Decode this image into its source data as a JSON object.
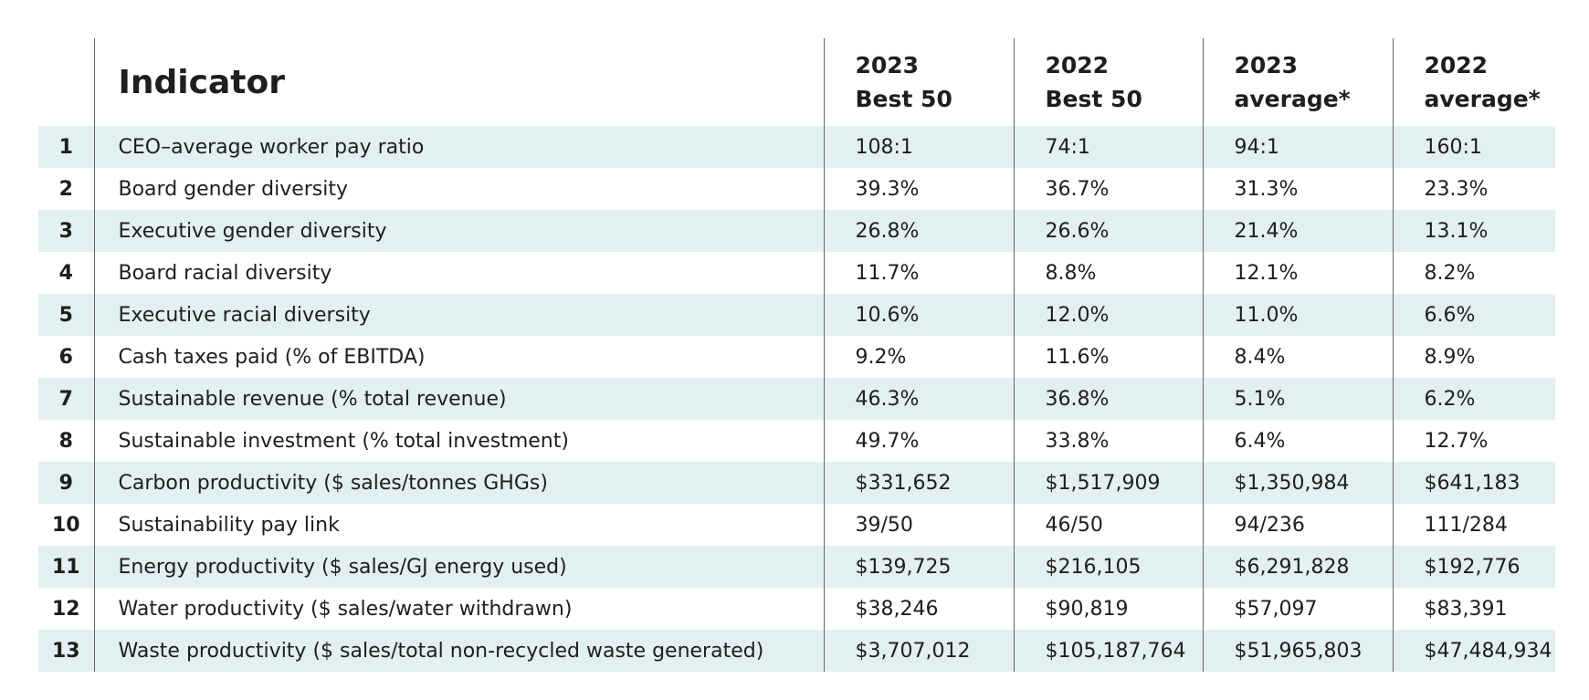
{
  "header": {
    "title": "Indicator",
    "columns": [
      [
        "2023",
        "Best 50"
      ],
      [
        "2022",
        "Best 50"
      ],
      [
        "2023",
        "average*"
      ],
      [
        "2022",
        "average*"
      ]
    ]
  },
  "table": {
    "rows": [
      [
        "1",
        "CEO–average worker pay ratio",
        "108:1",
        "74:1",
        "94:1",
        "160:1"
      ],
      [
        "2",
        "Board gender diversity",
        "39.3%",
        "36.7%",
        "31.3%",
        "23.3%"
      ],
      [
        "3",
        "Executive gender diversity",
        "26.8%",
        "26.6%",
        "21.4%",
        "13.1%"
      ],
      [
        "4",
        "Board racial diversity",
        "11.7%",
        "8.8%",
        "12.1%",
        "8.2%"
      ],
      [
        "5",
        "Executive racial diversity",
        "10.6%",
        "12.0%",
        "11.0%",
        "6.6%"
      ],
      [
        "6",
        "Cash taxes paid (% of EBITDA)",
        "9.2%",
        "11.6%",
        "8.4%",
        "8.9%"
      ],
      [
        "7",
        "Sustainable revenue (% total revenue)",
        "46.3%",
        "36.8%",
        "5.1%",
        "6.2%"
      ],
      [
        "8",
        "Sustainable investment (% total investment)",
        "49.7%",
        "33.8%",
        "6.4%",
        "12.7%"
      ],
      [
        "9",
        "Carbon productivity ($ sales/tonnes GHGs)",
        "$331,652",
        "$1,517,909",
        "$1,350,984",
        "$641,183"
      ],
      [
        "10",
        "Sustainability pay link",
        "39/50",
        "46/50",
        "94/236",
        "111/284"
      ],
      [
        "11",
        "Energy productivity  ($ sales/GJ energy used)",
        "$139,725",
        "$216,105",
        "$6,291,828",
        "$192,776"
      ],
      [
        "12",
        "Water productivity ($ sales/water withdrawn)",
        "$38,246",
        "$90,819",
        "$57,097",
        "$83,391"
      ],
      [
        "13",
        "Waste productivity ($ sales/total non-recycled waste generated)",
        "$3,707,012",
        "$105,187,764",
        "$51,965,803",
        "$47,484,934"
      ]
    ]
  }
}
